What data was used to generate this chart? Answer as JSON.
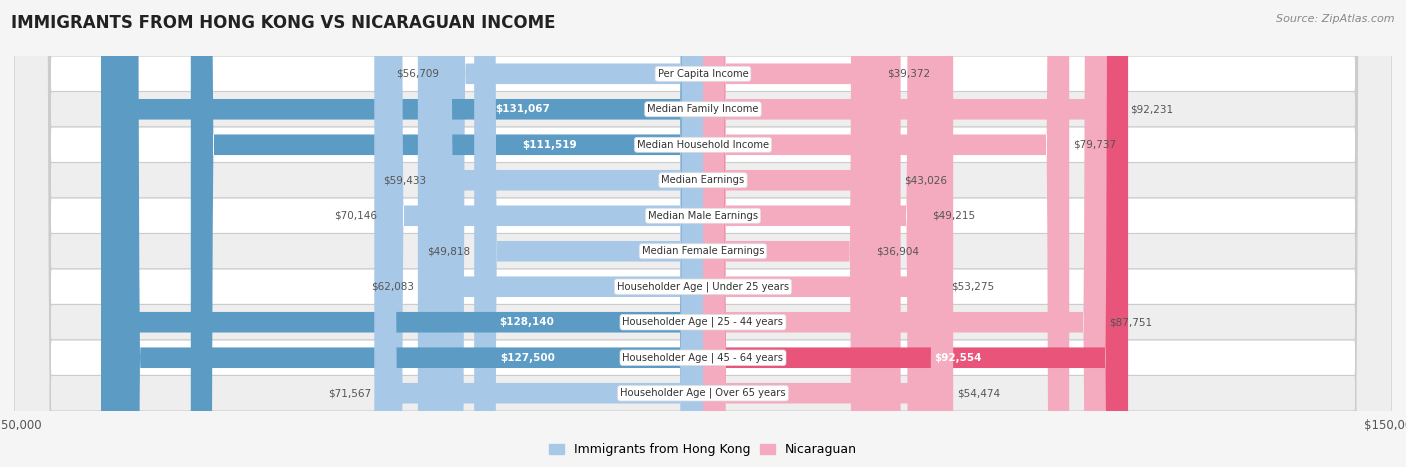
{
  "title": "IMMIGRANTS FROM HONG KONG VS NICARAGUAN INCOME",
  "source": "Source: ZipAtlas.com",
  "categories": [
    "Per Capita Income",
    "Median Family Income",
    "Median Household Income",
    "Median Earnings",
    "Median Male Earnings",
    "Median Female Earnings",
    "Householder Age | Under 25 years",
    "Householder Age | 25 - 44 years",
    "Householder Age | 45 - 64 years",
    "Householder Age | Over 65 years"
  ],
  "hk_values": [
    56709,
    131067,
    111519,
    59433,
    70146,
    49818,
    62083,
    128140,
    127500,
    71567
  ],
  "nic_values": [
    39372,
    92231,
    79737,
    43026,
    49215,
    36904,
    53275,
    87751,
    92554,
    54474
  ],
  "hk_labels": [
    "$56,709",
    "$131,067",
    "$111,519",
    "$59,433",
    "$70,146",
    "$49,818",
    "$62,083",
    "$128,140",
    "$127,500",
    "$71,567"
  ],
  "nic_labels": [
    "$39,372",
    "$92,231",
    "$79,737",
    "$43,026",
    "$49,215",
    "$36,904",
    "$53,275",
    "$87,751",
    "$92,554",
    "$54,474"
  ],
  "hk_color_light": "#A8C8E8",
  "hk_color_dark": "#5B9BC4",
  "nic_color_light": "#F4AABF",
  "nic_color_dark": "#E8547A",
  "max_value": 150000,
  "hk_label_inside": [
    false,
    true,
    true,
    false,
    false,
    false,
    false,
    true,
    true,
    false
  ],
  "nic_label_inside": [
    false,
    false,
    false,
    false,
    false,
    false,
    false,
    false,
    true,
    false
  ],
  "row_bg_even": "#ffffff",
  "row_bg_odd": "#eeeeee",
  "row_border": "#cccccc",
  "label_text_dark": "#555555",
  "label_text_white": "#ffffff"
}
